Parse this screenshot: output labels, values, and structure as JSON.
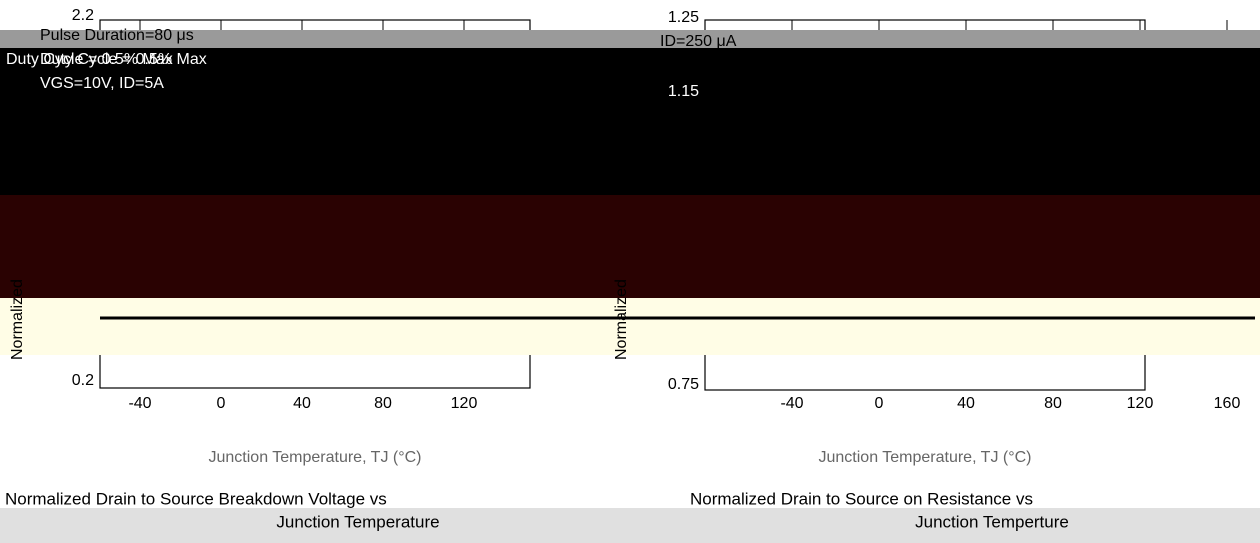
{
  "left_panel": {
    "y_ticks": [
      "2.2",
      "0.2"
    ],
    "x_ticks": [
      "-40",
      "0",
      "40",
      "80",
      "120"
    ],
    "annotations": [
      "Pulse Duration=80 μs",
      "Duty Cycle = 0.5% Max",
      "VGS=10V, ID=5A"
    ],
    "y_axis_label": "Normalized",
    "x_axis_label": "Junction Temperature, TJ (°C)"
  },
  "right_panel": {
    "y_ticks": [
      "1.25",
      "1.15",
      "0.75"
    ],
    "x_ticks": [
      "-40",
      "0",
      "40",
      "80",
      "120",
      "160"
    ],
    "annotations": [
      "ID=250 μA"
    ],
    "y_axis_label": "Normalized",
    "x_axis_label": "Junction Temperature, TJ (°C)"
  },
  "captions": {
    "left": {
      "line1": "Normalized Drain to Source Breakdown Voltage vs",
      "line2": "Junction Temperature"
    },
    "right": {
      "line1": "Normalized Drain to Source on Resistance vs",
      "line2": "Junction Temperture"
    }
  }
}
